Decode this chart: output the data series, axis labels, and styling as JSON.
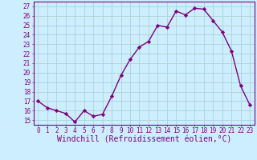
{
  "x": [
    0,
    1,
    2,
    3,
    4,
    5,
    6,
    7,
    8,
    9,
    10,
    11,
    12,
    13,
    14,
    15,
    16,
    17,
    18,
    19,
    20,
    21,
    22,
    23
  ],
  "y": [
    17.0,
    16.3,
    16.0,
    15.7,
    14.8,
    16.0,
    15.4,
    15.6,
    17.5,
    19.7,
    21.4,
    22.7,
    23.3,
    25.0,
    24.8,
    26.5,
    26.1,
    26.8,
    26.7,
    25.5,
    24.3,
    22.3,
    18.6,
    16.6
  ],
  "line_color": "#800080",
  "marker": "D",
  "marker_size": 2.2,
  "linewidth": 1.0,
  "bg_color": "#cceeff",
  "grid_color": "#aad4d4",
  "xlabel": "Windchill (Refroidissement éolien,°C)",
  "xlabel_color": "#800080",
  "ylabel_ticks": [
    15,
    16,
    17,
    18,
    19,
    20,
    21,
    22,
    23,
    24,
    25,
    26,
    27
  ],
  "xlim": [
    -0.5,
    23.5
  ],
  "ylim": [
    14.5,
    27.5
  ],
  "xtick_labels": [
    "0",
    "1",
    "2",
    "3",
    "4",
    "5",
    "6",
    "7",
    "8",
    "9",
    "10",
    "11",
    "12",
    "13",
    "14",
    "15",
    "16",
    "17",
    "18",
    "19",
    "20",
    "21",
    "22",
    "23"
  ],
  "tick_color": "#800080",
  "tick_fontsize": 5.5,
  "xlabel_fontsize": 7.0,
  "ylabel_fontsize": 5.5,
  "spine_color": "#800080"
}
